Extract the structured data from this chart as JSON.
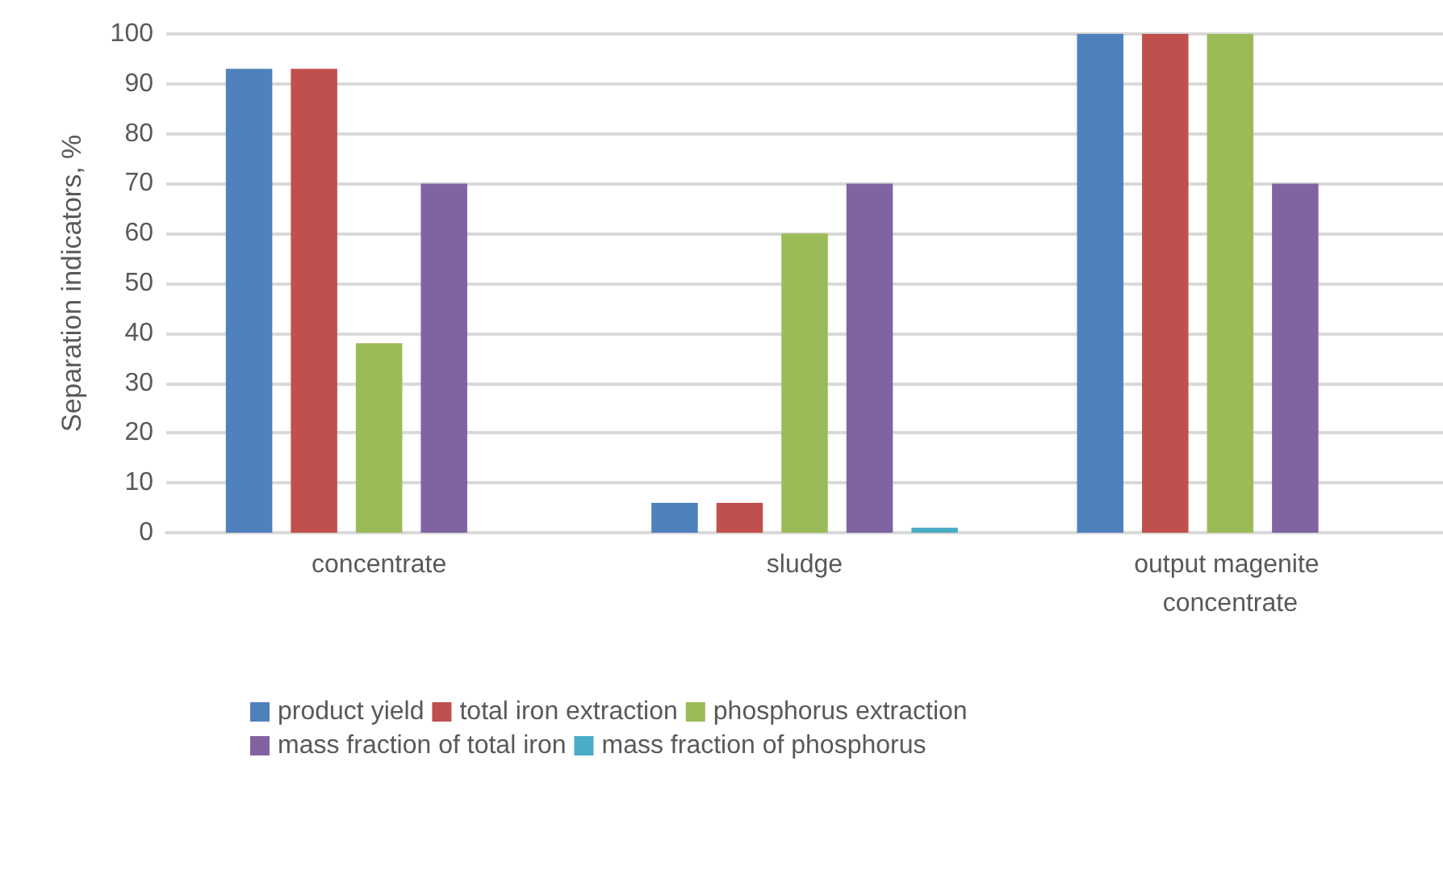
{
  "chart_data": {
    "type": "bar",
    "ylabel": "Separation indicators, %",
    "categories": [
      "concentrate",
      "sludge",
      "output magenite concentrate"
    ],
    "series": [
      {
        "name": "product yield",
        "color": "#4f81bd",
        "values": [
          93,
          6,
          100
        ]
      },
      {
        "name": "total iron extraction",
        "color": "#c0504d",
        "values": [
          93,
          6,
          100
        ]
      },
      {
        "name": "phosphorus extraction",
        "color": "#9bbb59",
        "values": [
          38,
          60,
          100
        ]
      },
      {
        "name": "mass fraction of total iron",
        "color": "#8064a2",
        "values": [
          70,
          70,
          70
        ]
      },
      {
        "name": "mass fraction of phosphorus",
        "color": "#4bacc6",
        "values": [
          0,
          1,
          0
        ]
      }
    ],
    "ylim": [
      0,
      100
    ],
    "yticks": [
      0,
      10,
      20,
      30,
      40,
      50,
      60,
      70,
      80,
      90,
      100
    ],
    "grid": "y",
    "legend": "bottom"
  }
}
